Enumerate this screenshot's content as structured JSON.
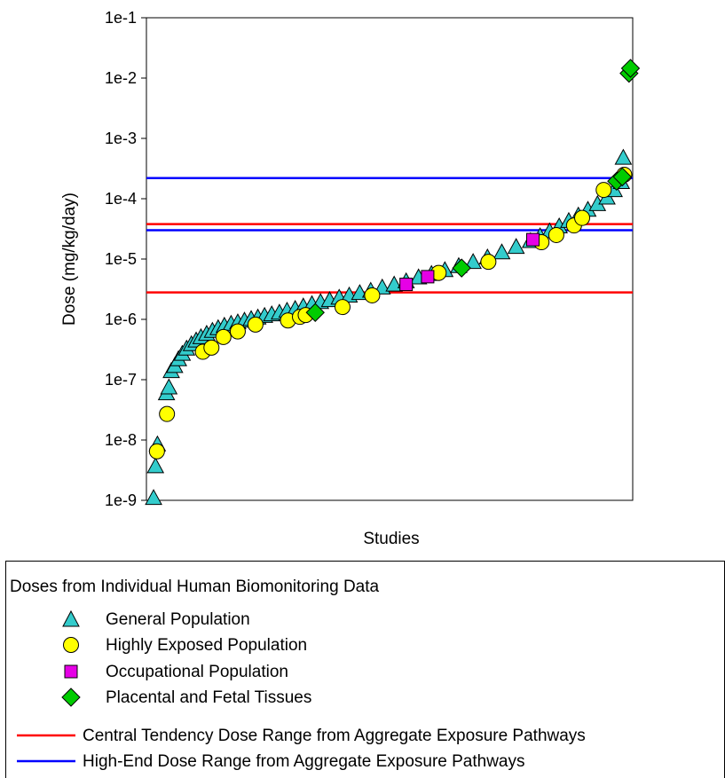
{
  "chart_data": {
    "type": "scatter",
    "title": "",
    "xlabel": "Studies",
    "ylabel": "Dose (mg/kg/day)",
    "yscale": "log",
    "ylim": [
      1e-09,
      0.1
    ],
    "xlim": [
      0,
      100
    ],
    "y_tick_labels": [
      "1e-9",
      "1e-8",
      "1e-7",
      "1e-6",
      "1e-5",
      "1e-4",
      "1e-3",
      "1e-2",
      "1e-1"
    ],
    "grid": false,
    "legend_heading": "Doses from Individual Human Biomonitoring Data",
    "legend_position": "below",
    "series": [
      {
        "name": "General Population",
        "marker": "triangle",
        "color": "#33cccc",
        "x": [
          0.2,
          0.6,
          1.0,
          2.9,
          3.4,
          3.9,
          4.6,
          5.4,
          6.2,
          7.1,
          8.1,
          9.1,
          10.1,
          11.3,
          12.5,
          13.7,
          15.0,
          16.4,
          17.8,
          19.2,
          20.6,
          22.0,
          23.4,
          24.9,
          26.5,
          28.1,
          29.8,
          31.5,
          33.3,
          35.1,
          37.0,
          39.0,
          41.1,
          43.3,
          45.6,
          48.0,
          50.5,
          53.0,
          55.6,
          58.3,
          61.1,
          64.0,
          67.0,
          70.0,
          73.0,
          76.0,
          79.0,
          81.0,
          83.0,
          85.0,
          87.0,
          89.0,
          91.0,
          93.0,
          95.0,
          96.5,
          98.0,
          98.4
        ],
        "values": [
          1.1e-09,
          3.7e-09,
          8.5e-09,
          6e-08,
          7.5e-08,
          1.4e-07,
          1.7e-07,
          2.2e-07,
          2.7e-07,
          3.3e-07,
          3.9e-07,
          4.5e-07,
          5.1e-07,
          5.8e-07,
          6.5e-07,
          7.2e-07,
          7.9e-07,
          8.5e-07,
          9e-07,
          9.6e-07,
          1.02e-06,
          1.08e-06,
          1.15e-06,
          1.22e-06,
          1.3e-06,
          1.4e-06,
          1.5e-06,
          1.65e-06,
          1.8e-06,
          1.95e-06,
          2.1e-06,
          2.3e-06,
          2.5e-06,
          2.75e-06,
          3e-06,
          3.4e-06,
          3.8e-06,
          4.3e-06,
          5e-06,
          5.7e-06,
          6.6e-06,
          7.7e-06,
          9e-06,
          1.07e-05,
          1.3e-05,
          1.6e-05,
          2e-05,
          2.4e-05,
          2.9e-05,
          3.5e-05,
          4.3e-05,
          5.3e-05,
          6.6e-05,
          8.2e-05,
          0.000105,
          0.00014,
          0.00019,
          0.00048
        ]
      },
      {
        "name": "Highly Exposed Population",
        "marker": "circle",
        "color": "#ffff00",
        "x": [
          0.9,
          3.0,
          10.5,
          12.3,
          14.8,
          17.8,
          21.5,
          28.3,
          30.8,
          32.0,
          39.7,
          45.9,
          59.8,
          70.2,
          81.3,
          84.4,
          88.1,
          89.8,
          94.3,
          98.6
        ],
        "values": [
          6.5e-09,
          2.7e-08,
          2.9e-07,
          3.4e-07,
          5.1e-07,
          6.3e-07,
          8.2e-07,
          9.6e-07,
          1.1e-06,
          1.18e-06,
          1.6e-06,
          2.5e-06,
          5.9e-06,
          9e-06,
          1.9e-05,
          2.5e-05,
          3.6e-05,
          4.8e-05,
          0.00014,
          0.00025
        ]
      },
      {
        "name": "Occupational Population",
        "marker": "square",
        "color": "#e600e6",
        "x": [
          53.0,
          57.5,
          79.5
        ],
        "values": [
          3.8e-06,
          5.1e-06,
          2.1e-05
        ]
      },
      {
        "name": "Placental and Fetal Tissues",
        "marker": "diamond",
        "color": "#00cc00",
        "x": [
          34.0,
          64.6,
          97.0,
          98.2,
          99.6,
          99.9
        ],
        "values": [
          1.3e-06,
          7.1e-06,
          0.000195,
          0.00023,
          0.012,
          0.0145
        ]
      }
    ],
    "reference_lines": [
      {
        "name": "Central Tendency Dose Range from Aggregate Exposure Pathways",
        "color": "#ff0000",
        "values": [
          2.8e-06,
          3.8e-05
        ]
      },
      {
        "name": "High-End Dose Range from Aggregate Exposure Pathways",
        "color": "#0000ff",
        "values": [
          3e-05,
          0.00022
        ]
      }
    ]
  }
}
